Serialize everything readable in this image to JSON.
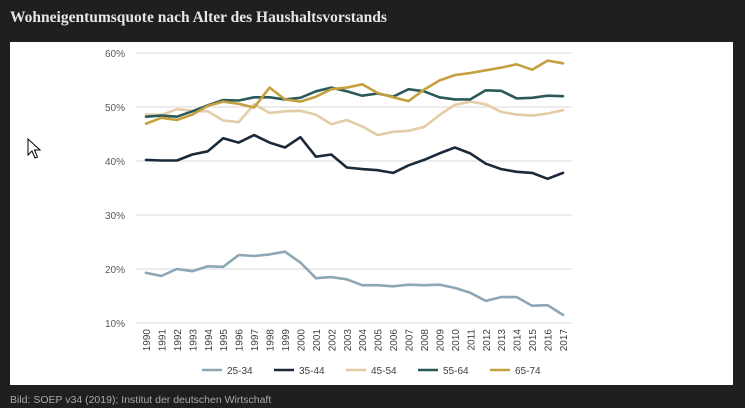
{
  "page": {
    "title": "Wohneigentumsquote nach Alter des Haushaltsvorstands",
    "caption": "Bild: SOEP v34 (2019); Institut der deutschen Wirtschaft"
  },
  "chart_data": {
    "type": "line",
    "title": "",
    "xlabel": "",
    "ylabel": "",
    "ylim": [
      10,
      60
    ],
    "yticks": [
      10,
      20,
      30,
      40,
      50,
      60
    ],
    "ytick_labels": [
      "10%",
      "20%",
      "30%",
      "40%",
      "50%",
      "60%"
    ],
    "grid": true,
    "legend_position": "bottom",
    "categories": [
      "1990",
      "1991",
      "1992",
      "1993",
      "1994",
      "1995",
      "1996",
      "1997",
      "1998",
      "1999",
      "2000",
      "2001",
      "2002",
      "2003",
      "2004",
      "2005",
      "2006",
      "2007",
      "2008",
      "2009",
      "2010",
      "2011",
      "2012",
      "2013",
      "2014",
      "2015",
      "2016",
      "2017"
    ],
    "series": [
      {
        "name": "25-34",
        "color": "#8fa6b5",
        "values": [
          19.3,
          18.7,
          20.0,
          19.6,
          20.5,
          20.4,
          22.6,
          22.4,
          22.7,
          23.2,
          21.2,
          18.3,
          18.5,
          18.1,
          17.0,
          17.0,
          16.8,
          17.1,
          17.0,
          17.1,
          16.5,
          15.6,
          14.1,
          14.8,
          14.8,
          13.2,
          13.3,
          11.5
        ]
      },
      {
        "name": "35-44",
        "color": "#1a2a3a",
        "values": [
          40.2,
          40.1,
          40.1,
          41.2,
          41.8,
          44.2,
          43.4,
          44.8,
          43.4,
          42.5,
          44.4,
          40.8,
          41.2,
          38.8,
          38.5,
          38.3,
          37.8,
          39.2,
          40.2,
          41.4,
          42.5,
          41.4,
          39.5,
          38.5,
          38.0,
          37.8,
          36.7,
          37.8
        ]
      },
      {
        "name": "45-54",
        "color": "#e2cda6",
        "values": [
          48.6,
          48.5,
          49.6,
          49.3,
          49.2,
          47.5,
          47.2,
          50.5,
          48.9,
          49.2,
          49.3,
          48.6,
          46.8,
          47.6,
          46.4,
          44.8,
          45.4,
          45.6,
          46.3,
          48.5,
          50.4,
          51.0,
          50.5,
          49.1,
          48.6,
          48.4,
          48.8,
          49.4
        ]
      },
      {
        "name": "55-64",
        "color": "#2c5a5a",
        "values": [
          48.2,
          48.4,
          48.2,
          49.2,
          50.3,
          51.3,
          51.2,
          51.8,
          51.8,
          51.4,
          51.7,
          52.9,
          53.6,
          52.9,
          52.1,
          52.5,
          51.9,
          53.3,
          52.9,
          51.8,
          51.4,
          51.4,
          53.1,
          53.0,
          51.6,
          51.7,
          52.1,
          52.0
        ]
      },
      {
        "name": "65-74",
        "color": "#c4a13e",
        "values": [
          46.9,
          48.0,
          47.6,
          48.6,
          50.2,
          51.0,
          50.6,
          49.9,
          53.6,
          51.4,
          51.0,
          51.9,
          53.3,
          53.6,
          54.2,
          52.6,
          51.8,
          51.1,
          53.2,
          54.9,
          55.9,
          56.3,
          56.8,
          57.3,
          57.9,
          56.9,
          58.6,
          58.1
        ]
      }
    ]
  }
}
